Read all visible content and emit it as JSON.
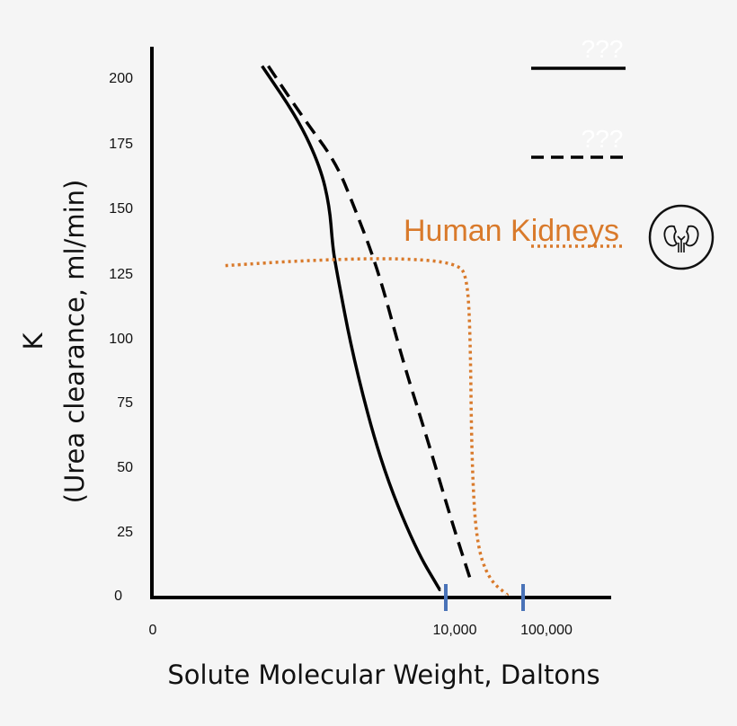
{
  "chart_data": {
    "type": "line",
    "xlabel": "Solute Molecular Weight, Daltons",
    "ylabel_line1": "K",
    "ylabel_line2": "(Urea clearance, ml/min)",
    "y_ticks": [
      "200",
      "175",
      "150",
      "125",
      "100",
      "75",
      "50",
      "25",
      "0"
    ],
    "ylim": [
      0,
      210
    ],
    "x_tick_labels": [
      "0",
      "10,000",
      "100,000"
    ],
    "x_scale": "log",
    "grid": false,
    "legend_placement": "top-right",
    "legend": [
      "???",
      "???",
      "Human Kidneys"
    ],
    "series": [
      {
        "name": "???",
        "style": "solid",
        "color": "#000000",
        "points": [
          [
            0.36,
            204
          ],
          [
            0.48,
            183
          ],
          [
            0.55,
            165
          ],
          [
            0.58,
            150
          ],
          [
            0.59,
            135
          ],
          [
            0.6,
            127
          ],
          [
            0.66,
            90
          ],
          [
            0.75,
            50
          ],
          [
            0.86,
            18
          ],
          [
            0.94,
            2
          ]
        ]
      },
      {
        "name": "???",
        "style": "dashed",
        "color": "#000000",
        "points": [
          [
            0.38,
            204
          ],
          [
            0.5,
            183
          ],
          [
            0.6,
            167
          ],
          [
            0.66,
            150
          ],
          [
            0.74,
            125
          ],
          [
            0.82,
            90
          ],
          [
            0.9,
            60
          ],
          [
            0.98,
            28
          ],
          [
            1.04,
            6
          ]
        ]
      },
      {
        "name": "Human Kidneys",
        "style": "dotted",
        "color": "#d97a2b",
        "points": [
          [
            0.24,
            127
          ],
          [
            0.5,
            129
          ],
          [
            0.8,
            130
          ],
          [
            1.0,
            128
          ],
          [
            1.03,
            122
          ],
          [
            1.04,
            100
          ],
          [
            1.045,
            50
          ],
          [
            1.06,
            20
          ],
          [
            1.1,
            6
          ],
          [
            1.16,
            0
          ]
        ]
      }
    ],
    "highlighted_ticks": [
      {
        "label": "10,000",
        "color": "#4a73b8"
      },
      {
        "label": "100,000",
        "color": "#4a73b8"
      }
    ]
  },
  "icons": {
    "legend_kidney": "kidney-icon"
  },
  "colors": {
    "orange": "#d97a2b",
    "tick_blue": "#4a73b8",
    "background": "#f5f5f5"
  }
}
